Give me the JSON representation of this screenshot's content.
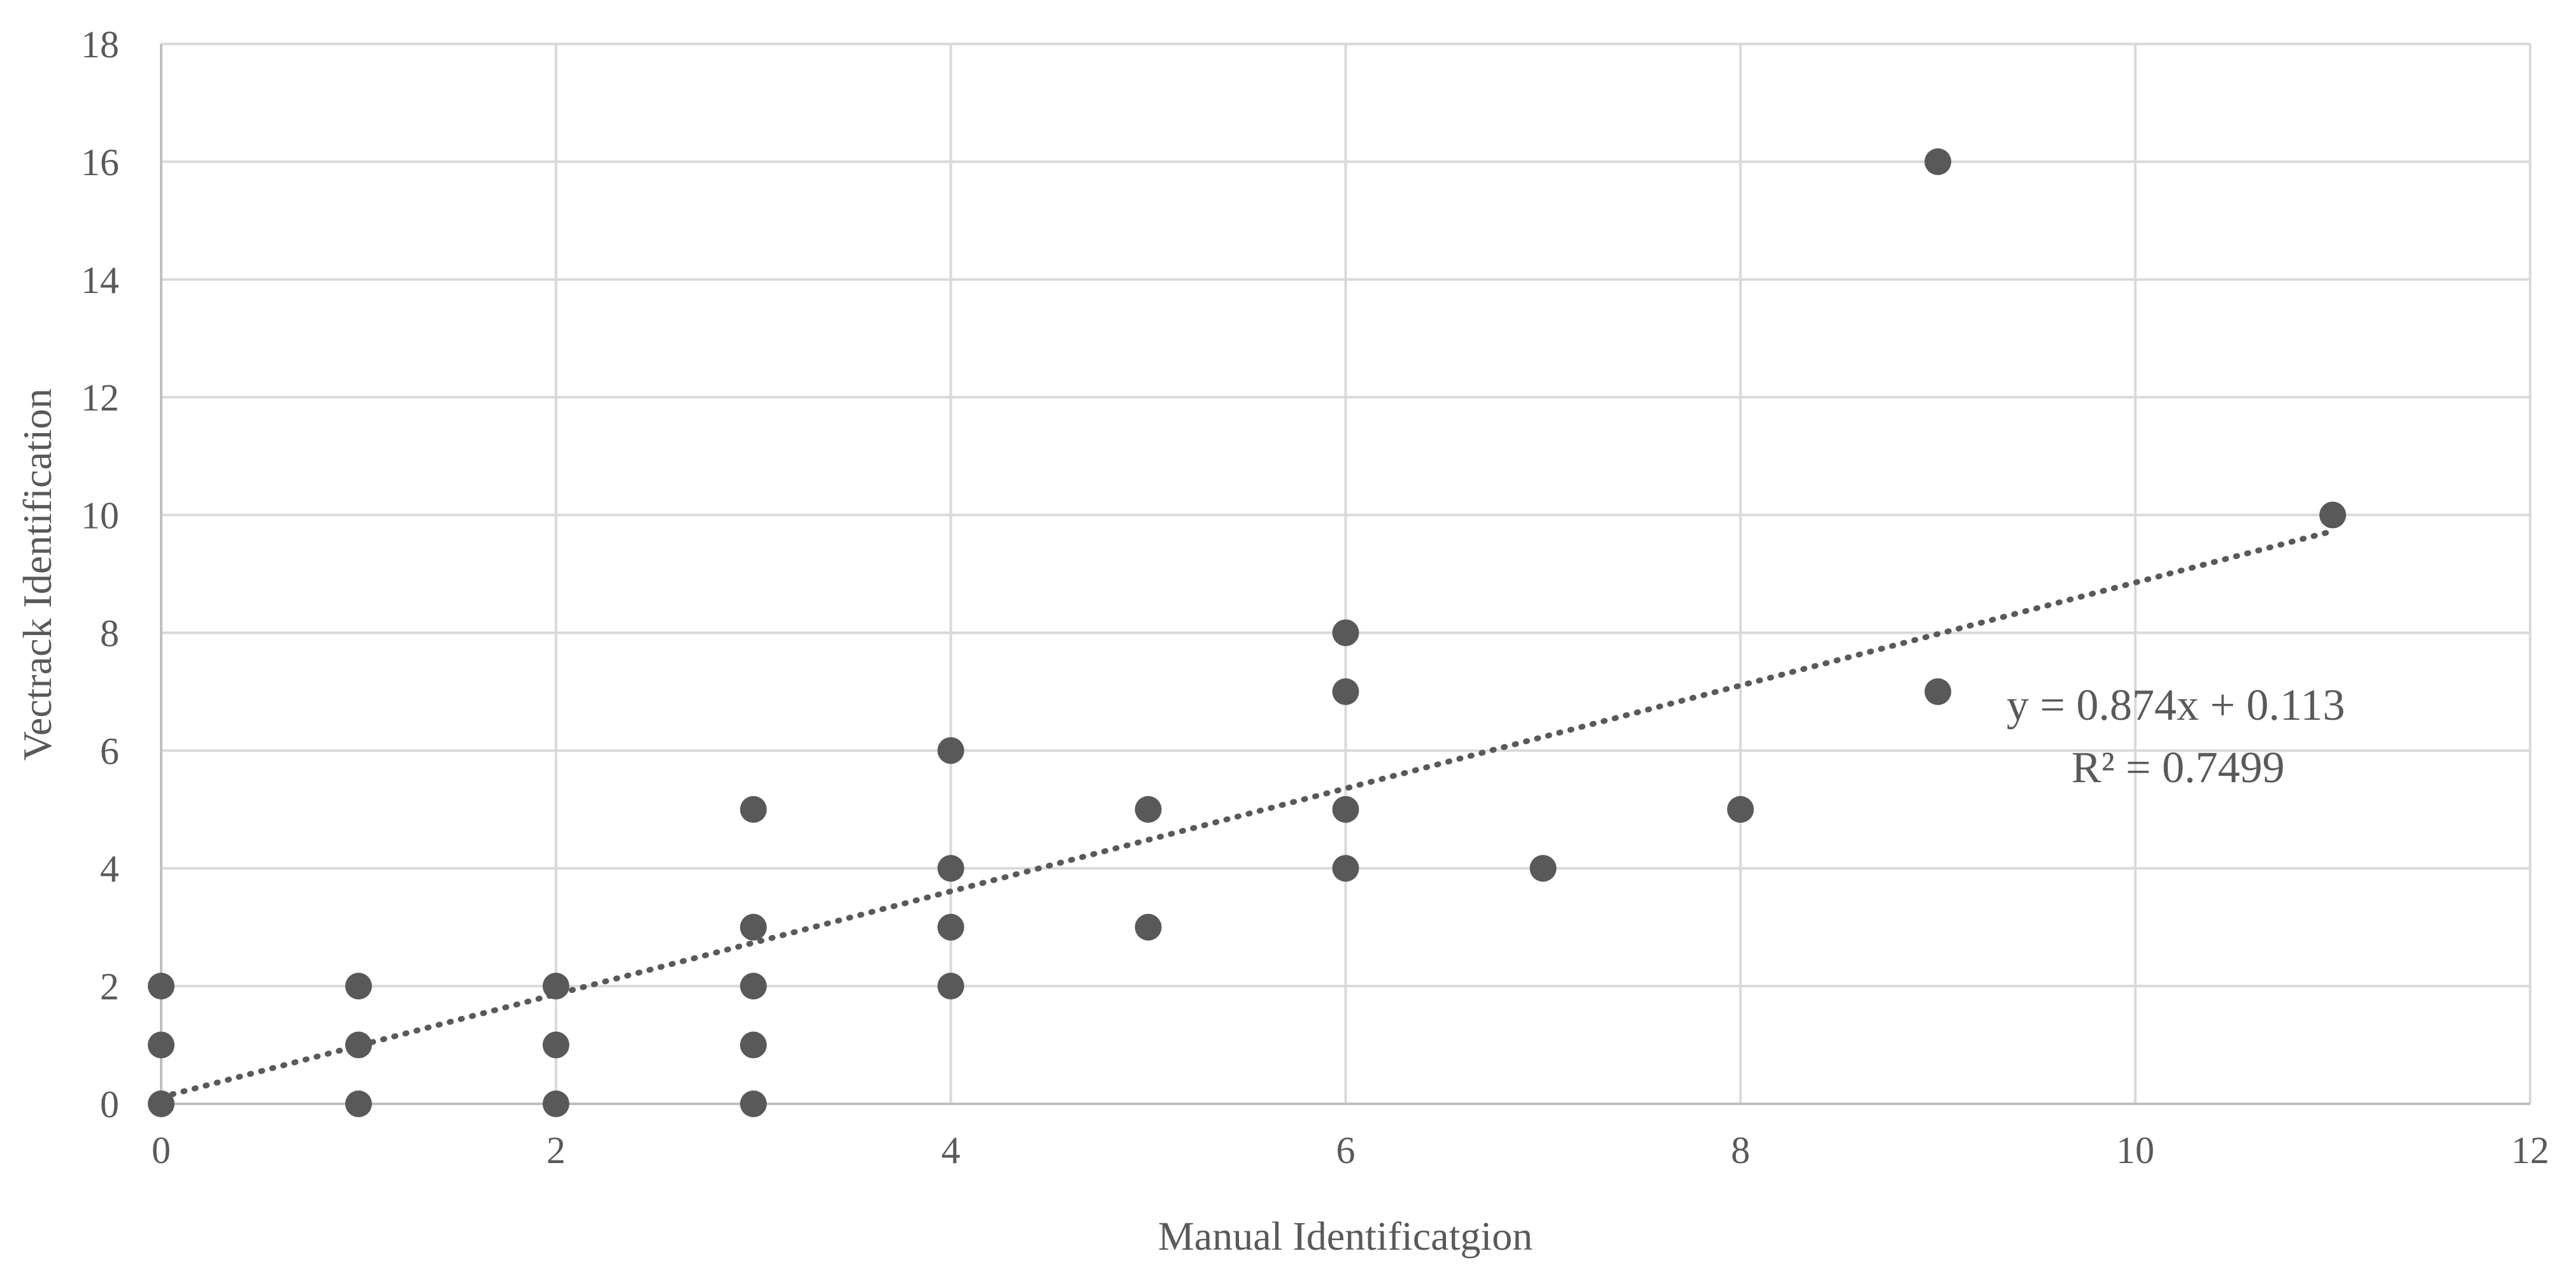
{
  "chart_data": {
    "type": "scatter",
    "title": "",
    "xlabel": "Manual Identificatgion",
    "ylabel": "Vectrack Identification",
    "xlim": [
      0,
      12
    ],
    "ylim": [
      0,
      18
    ],
    "x_ticks": [
      0,
      2,
      4,
      6,
      8,
      10,
      12
    ],
    "y_ticks": [
      0,
      2,
      4,
      6,
      8,
      10,
      12,
      14,
      16,
      18
    ],
    "grid": true,
    "legend": "none",
    "marker_color": "#595959",
    "grid_color": "#d9d9d9",
    "points": [
      {
        "x": 0,
        "y": 0
      },
      {
        "x": 0,
        "y": 1
      },
      {
        "x": 0,
        "y": 2
      },
      {
        "x": 1,
        "y": 0
      },
      {
        "x": 1,
        "y": 1
      },
      {
        "x": 1,
        "y": 2
      },
      {
        "x": 2,
        "y": 0
      },
      {
        "x": 2,
        "y": 1
      },
      {
        "x": 2,
        "y": 2
      },
      {
        "x": 3,
        "y": 0
      },
      {
        "x": 3,
        "y": 1
      },
      {
        "x": 3,
        "y": 2
      },
      {
        "x": 3,
        "y": 3
      },
      {
        "x": 3,
        "y": 5
      },
      {
        "x": 4,
        "y": 2
      },
      {
        "x": 4,
        "y": 3
      },
      {
        "x": 4,
        "y": 4
      },
      {
        "x": 4,
        "y": 6
      },
      {
        "x": 5,
        "y": 3
      },
      {
        "x": 5,
        "y": 5
      },
      {
        "x": 6,
        "y": 4
      },
      {
        "x": 6,
        "y": 5
      },
      {
        "x": 6,
        "y": 7
      },
      {
        "x": 6,
        "y": 8
      },
      {
        "x": 7,
        "y": 4
      },
      {
        "x": 8,
        "y": 5
      },
      {
        "x": 9,
        "y": 7
      },
      {
        "x": 9,
        "y": 16
      },
      {
        "x": 11,
        "y": 10
      }
    ],
    "trendline": {
      "type": "linear",
      "slope": 0.874,
      "intercept": 0.113,
      "x_range": [
        0,
        11
      ],
      "style": "dotted"
    },
    "annotations": {
      "equation": "y = 0.874x + 0.113",
      "r_squared": "R² = 0.7499"
    }
  }
}
